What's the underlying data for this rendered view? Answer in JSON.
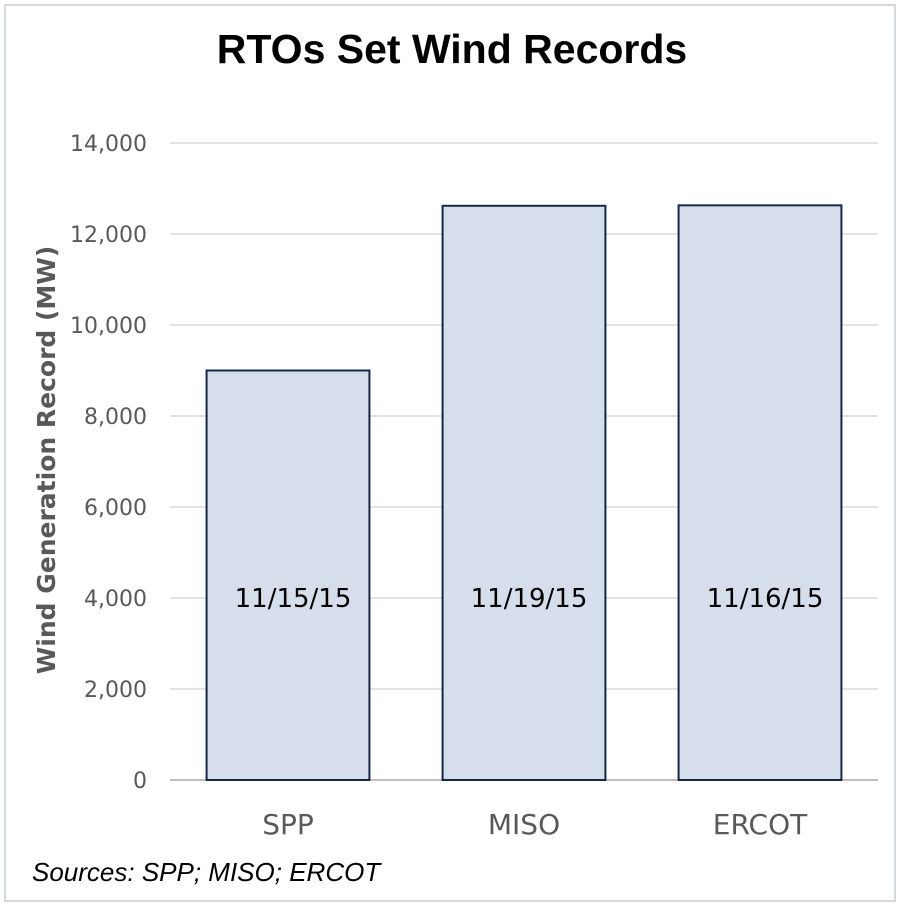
{
  "chart_data": {
    "type": "bar",
    "title": "RTOs Set Wind Records",
    "ylabel": "Wind Generation Record (MW)",
    "xlabel": "",
    "categories": [
      "SPP",
      "MISO",
      "ERCOT"
    ],
    "values": [
      9000,
      12620,
      12630
    ],
    "data_labels": [
      "11/15/15",
      "11/19/15",
      "11/16/15"
    ],
    "ylim": [
      0,
      14000
    ],
    "yticks": [
      0,
      2000,
      4000,
      6000,
      8000,
      10000,
      12000,
      14000
    ],
    "ytick_labels": [
      "0",
      "2,000",
      "4,000",
      "6,000",
      "8,000",
      "10,000",
      "12,000",
      "14,000"
    ],
    "grid": true,
    "legend": "none",
    "bar_fill": "#d6deeb",
    "bar_stroke": "#15284b",
    "source": "Sources: SPP; MISO; ERCOT"
  }
}
